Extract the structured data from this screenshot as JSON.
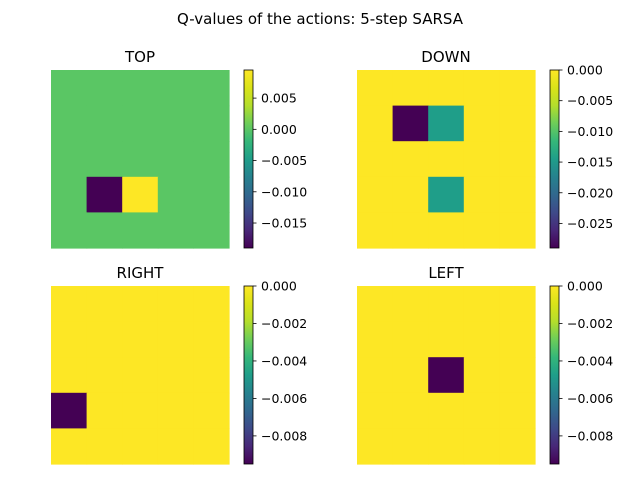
{
  "figure": {
    "title": "Q-values of the actions: 5-step SARSA"
  },
  "chart_data": [
    {
      "type": "heatmap",
      "title": "TOP",
      "colormap": "viridis",
      "grid_size": [
        5,
        5
      ],
      "cells": [
        [
          0,
          0,
          0,
          0,
          0
        ],
        [
          0,
          0,
          0,
          0,
          0
        ],
        [
          0,
          0,
          0,
          0,
          0
        ],
        [
          0,
          -0.019,
          0.0095,
          0,
          0
        ],
        [
          0,
          0,
          0,
          0,
          0
        ]
      ],
      "vmin": -0.019,
      "vmax": 0.0095,
      "colorbar_ticks": [
        0.005,
        0.0,
        -0.005,
        -0.01,
        -0.015
      ],
      "colorbar_tick_labels": [
        "0.005",
        "0.000",
        "−0.005",
        "−0.010",
        "−0.015"
      ]
    },
    {
      "type": "heatmap",
      "title": "DOWN",
      "colormap": "viridis",
      "grid_size": [
        5,
        5
      ],
      "cells": [
        [
          0,
          0,
          0,
          0,
          0
        ],
        [
          0,
          -0.029,
          -0.0145,
          0,
          0
        ],
        [
          0,
          0,
          0,
          0,
          0
        ],
        [
          0,
          0,
          -0.0145,
          0,
          0
        ],
        [
          0,
          0,
          0,
          0,
          0
        ]
      ],
      "vmin": -0.029,
      "vmax": 0.0,
      "colorbar_ticks": [
        0.0,
        -0.005,
        -0.01,
        -0.015,
        -0.02,
        -0.025
      ],
      "colorbar_tick_labels": [
        "0.000",
        "−0.005",
        "−0.010",
        "−0.015",
        "−0.020",
        "−0.025"
      ]
    },
    {
      "type": "heatmap",
      "title": "RIGHT",
      "colormap": "viridis",
      "grid_size": [
        5,
        5
      ],
      "cells": [
        [
          0,
          0,
          0,
          0,
          0
        ],
        [
          0,
          0,
          0,
          0,
          0
        ],
        [
          0,
          0,
          0,
          0,
          0
        ],
        [
          -0.0095,
          0,
          0,
          0,
          0
        ],
        [
          0,
          0,
          0,
          0,
          0
        ]
      ],
      "vmin": -0.0095,
      "vmax": 0.0,
      "colorbar_ticks": [
        0.0,
        -0.002,
        -0.004,
        -0.006,
        -0.008
      ],
      "colorbar_tick_labels": [
        "0.000",
        "−0.002",
        "−0.004",
        "−0.006",
        "−0.008"
      ]
    },
    {
      "type": "heatmap",
      "title": "LEFT",
      "colormap": "viridis",
      "grid_size": [
        5,
        5
      ],
      "cells": [
        [
          0,
          0,
          0,
          0,
          0
        ],
        [
          0,
          0,
          0,
          0,
          0
        ],
        [
          0,
          0,
          -0.0095,
          0,
          0
        ],
        [
          0,
          0,
          0,
          0,
          0
        ],
        [
          0,
          0,
          0,
          0,
          0
        ]
      ],
      "vmin": -0.0095,
      "vmax": 0.0,
      "colorbar_ticks": [
        0.0,
        -0.002,
        -0.004,
        -0.006,
        -0.008
      ],
      "colorbar_tick_labels": [
        "0.000",
        "−0.002",
        "−0.004",
        "−0.006",
        "−0.008"
      ]
    }
  ]
}
